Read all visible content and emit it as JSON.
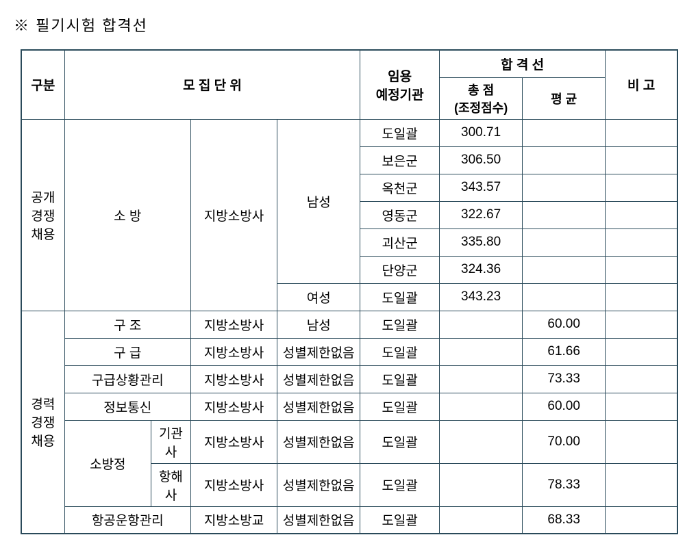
{
  "title": "※ 필기시험 합격선",
  "headers": {
    "gubun": "구분",
    "unit": "모 집 단 위",
    "agency": "임용\n예정기관",
    "passline": "합 격 선",
    "total": "총   점\n(조정점수)",
    "avg": "평   균",
    "note": "비 고"
  },
  "gubun": {
    "open": "공개\n경쟁\n채용",
    "career": "경력\n경쟁\n채용"
  },
  "open": {
    "field": "소   방",
    "rank": "지방소방사",
    "gender_male": "남성",
    "gender_female": "여성",
    "male_rows": [
      {
        "agency": "도일괄",
        "score": "300.71"
      },
      {
        "agency": "보은군",
        "score": "306.50"
      },
      {
        "agency": "옥천군",
        "score": "343.57"
      },
      {
        "agency": "영동군",
        "score": "322.67"
      },
      {
        "agency": "괴산군",
        "score": "335.80"
      },
      {
        "agency": "단양군",
        "score": "324.36"
      }
    ],
    "female_row": {
      "agency": "도일괄",
      "score": "343.23"
    }
  },
  "career": {
    "rows": [
      {
        "field": "구   조",
        "sub": "",
        "rank": "지방소방사",
        "gender": "남성",
        "agency": "도일괄",
        "avg": "60.00",
        "colspan": 2
      },
      {
        "field": "구   급",
        "sub": "",
        "rank": "지방소방사",
        "gender": "성별제한없음",
        "agency": "도일괄",
        "avg": "61.66",
        "colspan": 2
      },
      {
        "field": "구급상황관리",
        "sub": "",
        "rank": "지방소방사",
        "gender": "성별제한없음",
        "agency": "도일괄",
        "avg": "73.33",
        "colspan": 2
      },
      {
        "field": "정보통신",
        "sub": "",
        "rank": "지방소방사",
        "gender": "성별제한없음",
        "agency": "도일괄",
        "avg": "60.00",
        "colspan": 2
      }
    ],
    "boat": {
      "field": "소방정",
      "rows": [
        {
          "sub": "기관사",
          "rank": "지방소방사",
          "gender": "성별제한없음",
          "agency": "도일괄",
          "avg": "70.00"
        },
        {
          "sub": "항해사",
          "rank": "지방소방사",
          "gender": "성별제한없음",
          "agency": "도일괄",
          "avg": "78.33"
        }
      ]
    },
    "aviation": {
      "field": "항공운항관리",
      "rank": "지방소방교",
      "gender": "성별제한없음",
      "agency": "도일괄",
      "avg": "68.33"
    }
  },
  "style": {
    "border_color": "#2a4a5a",
    "background": "#ffffff",
    "font_size_title": 22,
    "font_size_cell": 19
  }
}
